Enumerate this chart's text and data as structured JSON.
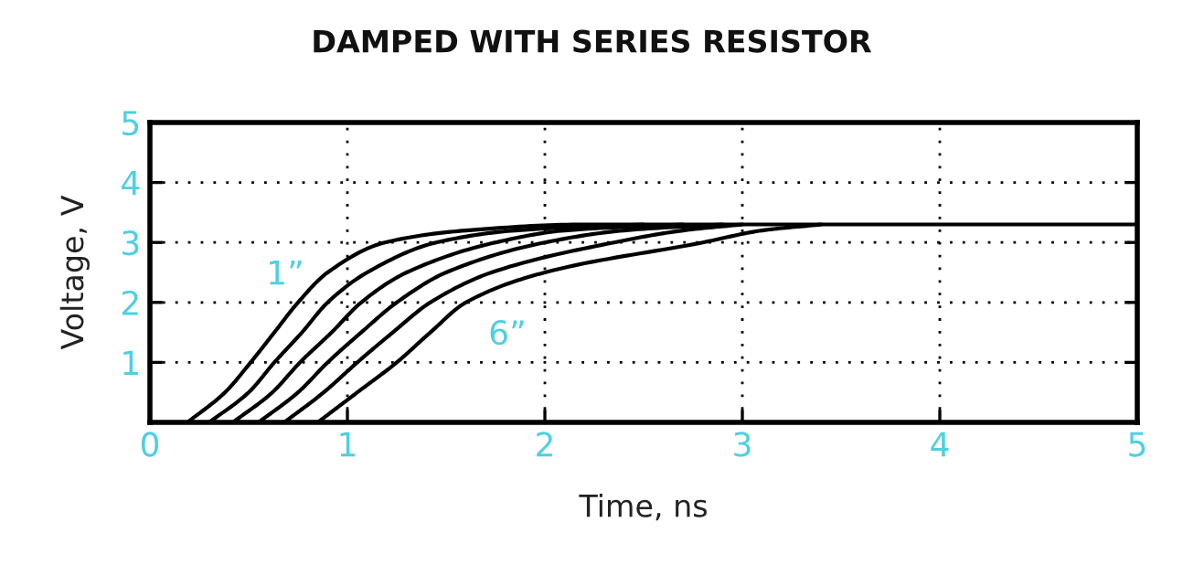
{
  "chart_data": {
    "type": "line",
    "title": "DAMPED WITH SERIES RESISTOR",
    "xlabel": "Time, ns",
    "ylabel": "Voltage, V",
    "xlim": [
      0,
      5
    ],
    "ylim": [
      0,
      5
    ],
    "xticks": [
      0,
      1,
      2,
      3,
      4,
      5
    ],
    "yticks": [
      {
        "value": 0,
        "label": null
      },
      1,
      2,
      3,
      4,
      5
    ],
    "grid": true,
    "marker": "none",
    "line_style": "solid",
    "series": [
      {
        "color": "#000000",
        "x": [
          0.19,
          0.38,
          0.51,
          0.63,
          0.75,
          0.9,
          1.19,
          1.6,
          2.2,
          5
        ],
        "values": [
          0,
          0.5,
          1,
          1.5,
          2,
          2.5,
          3,
          3.2,
          3.3,
          3.3
        ]
      },
      {
        "color": "#000000",
        "x": [
          0.3,
          0.5,
          0.63,
          0.77,
          0.9,
          1.1,
          1.45,
          1.85,
          2.5
        ],
        "values": [
          0,
          0.5,
          1,
          1.5,
          2,
          2.5,
          3,
          3.2,
          3.3
        ]
      },
      {
        "color": "#000000",
        "x": [
          0.42,
          0.62,
          0.76,
          0.92,
          1.07,
          1.3,
          1.75,
          2.1,
          2.7
        ],
        "values": [
          0,
          0.5,
          1,
          1.5,
          2,
          2.5,
          3,
          3.2,
          3.3
        ]
      },
      {
        "color": "#000000",
        "x": [
          0.55,
          0.75,
          0.9,
          1.07,
          1.25,
          1.5,
          2.0,
          2.4,
          2.9
        ],
        "values": [
          0,
          0.5,
          1,
          1.5,
          2,
          2.5,
          3,
          3.2,
          3.3
        ]
      },
      {
        "color": "#000000",
        "x": [
          0.68,
          0.88,
          1.05,
          1.23,
          1.42,
          1.73,
          2.35,
          2.7,
          3.0
        ],
        "values": [
          0,
          0.5,
          1,
          1.5,
          2,
          2.5,
          3,
          3.2,
          3.3
        ]
      },
      {
        "color": "#000000",
        "x": [
          0.85,
          1.05,
          1.25,
          1.42,
          1.6,
          2.0,
          2.8,
          3.1,
          3.4
        ],
        "values": [
          0,
          0.5,
          1,
          1.5,
          2,
          2.5,
          3,
          3.2,
          3.3
        ]
      }
    ],
    "annotations": [
      "1”",
      "6”"
    ]
  }
}
